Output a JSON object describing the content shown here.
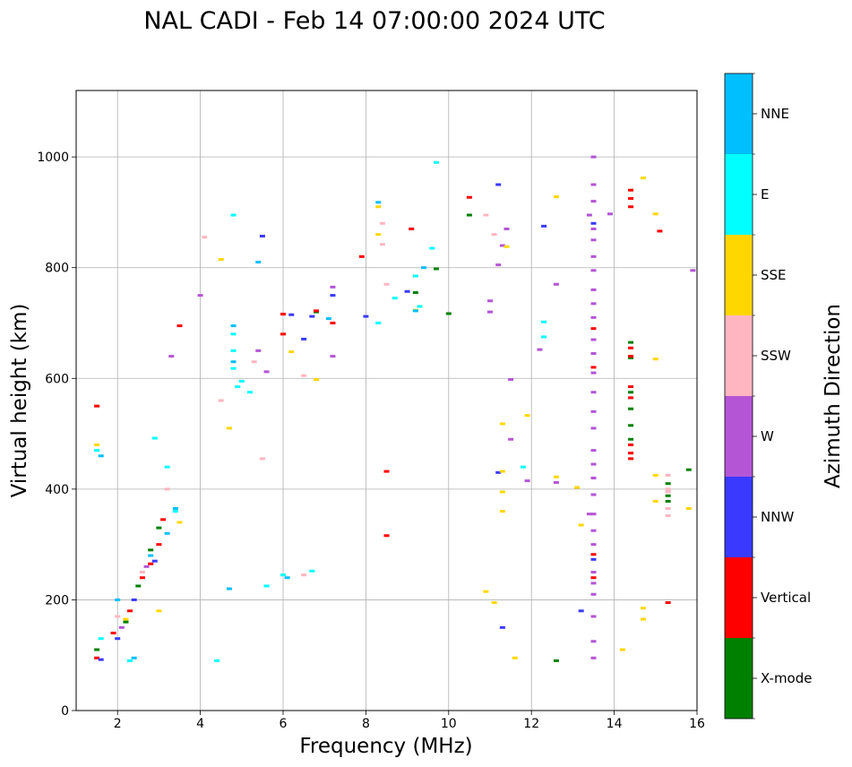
{
  "chart_data": {
    "type": "scatter",
    "title": "NAL CADI - Feb 14 07:00:00 2024 UTC",
    "xlabel": "Frequency (MHz)",
    "ylabel": "Virtual height (km)",
    "xlim": [
      1,
      16
    ],
    "ylim": [
      0,
      1120
    ],
    "xticks": [
      2,
      4,
      6,
      8,
      10,
      12,
      14,
      16
    ],
    "yticks": [
      0,
      200,
      400,
      600,
      800,
      1000
    ],
    "grid": true,
    "colorbar": {
      "label": "Azimuth Direction",
      "categories": [
        {
          "name": "X-mode",
          "color": "#008000"
        },
        {
          "name": "Vertical",
          "color": "#ff0000"
        },
        {
          "name": "NNW",
          "color": "#3a3aff"
        },
        {
          "name": "W",
          "color": "#b455d5"
        },
        {
          "name": "SSW",
          "color": "#ffb6c1"
        },
        {
          "name": "SSE",
          "color": "#ffd700"
        },
        {
          "name": "E",
          "color": "#00ffff"
        },
        {
          "name": "NNE",
          "color": "#00bfff"
        }
      ]
    },
    "series": [
      {
        "name": "X-mode",
        "points": [
          [
            1.5,
            110
          ],
          [
            2.2,
            160
          ],
          [
            2.5,
            225
          ],
          [
            2.8,
            290
          ],
          [
            3.0,
            330
          ],
          [
            6.8,
            720
          ],
          [
            9.2,
            755
          ],
          [
            9.7,
            798
          ],
          [
            10.0,
            717
          ],
          [
            10.5,
            895
          ],
          [
            12.6,
            90
          ],
          [
            14.4,
            665
          ],
          [
            14.4,
            637
          ],
          [
            14.4,
            575
          ],
          [
            14.4,
            545
          ],
          [
            14.4,
            515
          ],
          [
            14.4,
            490
          ],
          [
            15.3,
            410
          ],
          [
            15.3,
            388
          ],
          [
            15.3,
            378
          ],
          [
            15.8,
            435
          ]
        ]
      },
      {
        "name": "Vertical",
        "points": [
          [
            1.5,
            95
          ],
          [
            1.5,
            550
          ],
          [
            1.9,
            140
          ],
          [
            2.3,
            180
          ],
          [
            2.6,
            240
          ],
          [
            2.8,
            265
          ],
          [
            3.0,
            300
          ],
          [
            3.1,
            345
          ],
          [
            3.5,
            695
          ],
          [
            6.0,
            680
          ],
          [
            6.0,
            716
          ],
          [
            6.8,
            722
          ],
          [
            7.2,
            700
          ],
          [
            7.9,
            820
          ],
          [
            8.5,
            432
          ],
          [
            8.5,
            316
          ],
          [
            9.1,
            870
          ],
          [
            10.5,
            927
          ],
          [
            13.5,
            690
          ],
          [
            13.5,
            620
          ],
          [
            13.5,
            282
          ],
          [
            13.5,
            240
          ],
          [
            14.4,
            940
          ],
          [
            14.4,
            925
          ],
          [
            14.4,
            910
          ],
          [
            14.4,
            655
          ],
          [
            14.4,
            640
          ],
          [
            14.4,
            585
          ],
          [
            14.4,
            565
          ],
          [
            14.4,
            480
          ],
          [
            14.4,
            465
          ],
          [
            14.4,
            455
          ],
          [
            15.1,
            866
          ],
          [
            15.3,
            195
          ]
        ]
      },
      {
        "name": "NNW",
        "points": [
          [
            1.6,
            92
          ],
          [
            2.0,
            130
          ],
          [
            2.4,
            200
          ],
          [
            2.9,
            270
          ],
          [
            5.5,
            857
          ],
          [
            6.2,
            715
          ],
          [
            6.5,
            671
          ],
          [
            6.7,
            712
          ],
          [
            7.2,
            750
          ],
          [
            8.0,
            712
          ],
          [
            9.0,
            757
          ],
          [
            11.2,
            430
          ],
          [
            11.2,
            950
          ],
          [
            11.3,
            150
          ],
          [
            12.3,
            875
          ],
          [
            13.2,
            180
          ],
          [
            13.5,
            880
          ],
          [
            13.5,
            273
          ]
        ]
      },
      {
        "name": "W",
        "points": [
          [
            2.1,
            150
          ],
          [
            2.7,
            260
          ],
          [
            3.3,
            640
          ],
          [
            4.0,
            750
          ],
          [
            5.4,
            650
          ],
          [
            5.6,
            612
          ],
          [
            7.2,
            765
          ],
          [
            7.2,
            640
          ],
          [
            11.0,
            720
          ],
          [
            11.0,
            740
          ],
          [
            11.2,
            805
          ],
          [
            11.3,
            840
          ],
          [
            11.4,
            870
          ],
          [
            11.5,
            598
          ],
          [
            11.5,
            490
          ],
          [
            11.9,
            415
          ],
          [
            12.2,
            652
          ],
          [
            12.6,
            770
          ],
          [
            12.6,
            412
          ],
          [
            13.4,
            895
          ],
          [
            13.4,
            355
          ],
          [
            13.5,
            1000
          ],
          [
            13.5,
            950
          ],
          [
            13.5,
            920
          ],
          [
            13.5,
            870
          ],
          [
            13.5,
            850
          ],
          [
            13.5,
            820
          ],
          [
            13.5,
            795
          ],
          [
            13.5,
            760
          ],
          [
            13.5,
            735
          ],
          [
            13.5,
            710
          ],
          [
            13.5,
            670
          ],
          [
            13.5,
            645
          ],
          [
            13.5,
            610
          ],
          [
            13.5,
            575
          ],
          [
            13.5,
            540
          ],
          [
            13.5,
            510
          ],
          [
            13.5,
            470
          ],
          [
            13.5,
            445
          ],
          [
            13.5,
            420
          ],
          [
            13.5,
            390
          ],
          [
            13.5,
            355
          ],
          [
            13.5,
            325
          ],
          [
            13.5,
            300
          ],
          [
            13.5,
            250
          ],
          [
            13.5,
            230
          ],
          [
            13.5,
            210
          ],
          [
            13.5,
            170
          ],
          [
            13.5,
            125
          ],
          [
            13.5,
            95
          ],
          [
            13.9,
            897
          ],
          [
            15.9,
            795
          ]
        ]
      },
      {
        "name": "SSW",
        "points": [
          [
            2.0,
            170
          ],
          [
            2.6,
            250
          ],
          [
            3.2,
            400
          ],
          [
            4.1,
            855
          ],
          [
            4.5,
            560
          ],
          [
            5.3,
            630
          ],
          [
            5.5,
            455
          ],
          [
            6.5,
            245
          ],
          [
            6.5,
            605
          ],
          [
            8.4,
            880
          ],
          [
            8.4,
            842
          ],
          [
            8.5,
            770
          ],
          [
            10.9,
            895
          ],
          [
            11.1,
            860
          ],
          [
            15.3,
            425
          ],
          [
            15.3,
            400
          ],
          [
            15.3,
            365
          ],
          [
            15.3,
            352
          ],
          [
            15.3,
            395
          ]
        ]
      },
      {
        "name": "SSE",
        "points": [
          [
            1.5,
            480
          ],
          [
            2.2,
            165
          ],
          [
            3.0,
            180
          ],
          [
            3.5,
            340
          ],
          [
            4.5,
            815
          ],
          [
            4.7,
            510
          ],
          [
            6.2,
            648
          ],
          [
            6.8,
            598
          ],
          [
            8.3,
            910
          ],
          [
            8.3,
            860
          ],
          [
            9.2,
            723
          ],
          [
            10.9,
            215
          ],
          [
            11.1,
            195
          ],
          [
            11.3,
            518
          ],
          [
            11.3,
            432
          ],
          [
            11.3,
            395
          ],
          [
            11.3,
            360
          ],
          [
            11.4,
            838
          ],
          [
            11.6,
            95
          ],
          [
            11.9,
            533
          ],
          [
            12.6,
            928
          ],
          [
            12.6,
            422
          ],
          [
            13.1,
            403
          ],
          [
            13.2,
            335
          ],
          [
            14.2,
            110
          ],
          [
            14.7,
            962
          ],
          [
            14.7,
            185
          ],
          [
            14.7,
            165
          ],
          [
            15.0,
            635
          ],
          [
            15.0,
            897
          ],
          [
            15.0,
            425
          ],
          [
            15.0,
            378
          ],
          [
            15.8,
            365
          ]
        ]
      },
      {
        "name": "E",
        "points": [
          [
            1.5,
            470
          ],
          [
            1.6,
            130
          ],
          [
            2.3,
            90
          ],
          [
            2.9,
            492
          ],
          [
            3.2,
            440
          ],
          [
            3.4,
            360
          ],
          [
            4.4,
            90
          ],
          [
            4.8,
            680
          ],
          [
            4.8,
            650
          ],
          [
            4.8,
            618
          ],
          [
            4.8,
            895
          ],
          [
            4.9,
            585
          ],
          [
            5.0,
            595
          ],
          [
            5.2,
            575
          ],
          [
            5.6,
            225
          ],
          [
            6.0,
            245
          ],
          [
            6.7,
            252
          ],
          [
            8.3,
            700
          ],
          [
            8.7,
            745
          ],
          [
            9.2,
            785
          ],
          [
            9.3,
            730
          ],
          [
            9.7,
            990
          ],
          [
            9.6,
            835
          ],
          [
            11.8,
            440
          ],
          [
            12.3,
            702
          ],
          [
            12.3,
            675
          ]
        ]
      },
      {
        "name": "NNE",
        "points": [
          [
            1.6,
            460
          ],
          [
            2.0,
            200
          ],
          [
            2.4,
            95
          ],
          [
            2.8,
            280
          ],
          [
            3.2,
            320
          ],
          [
            3.4,
            365
          ],
          [
            4.7,
            220
          ],
          [
            4.8,
            695
          ],
          [
            4.8,
            630
          ],
          [
            5.4,
            810
          ],
          [
            6.1,
            240
          ],
          [
            7.1,
            708
          ],
          [
            8.3,
            918
          ],
          [
            9.2,
            722
          ],
          [
            9.4,
            800
          ]
        ]
      }
    ]
  }
}
